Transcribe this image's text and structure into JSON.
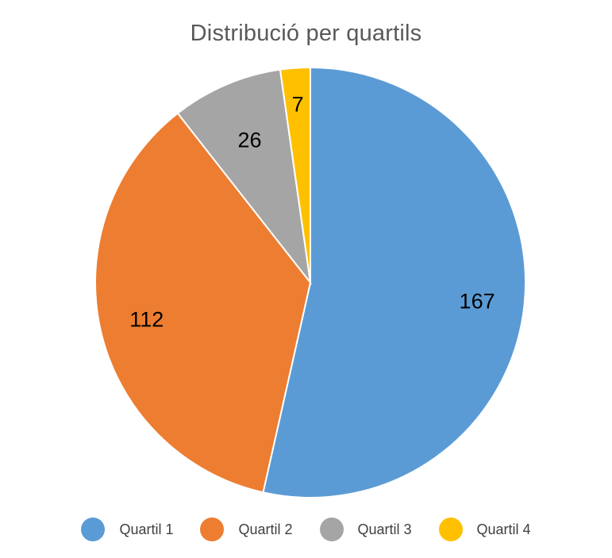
{
  "chart_data": {
    "type": "pie",
    "title": "Distribució per quartils",
    "categories": [
      "Quartil 1",
      "Quartil 2",
      "Quartil 3",
      "Quartil 4"
    ],
    "values": [
      167,
      112,
      26,
      7
    ],
    "colors": [
      "#5B9BD5",
      "#ED7D31",
      "#A5A5A5",
      "#FFC000"
    ],
    "legend_position": "bottom",
    "data_labels": [
      "167",
      "112",
      "26",
      "7"
    ]
  }
}
